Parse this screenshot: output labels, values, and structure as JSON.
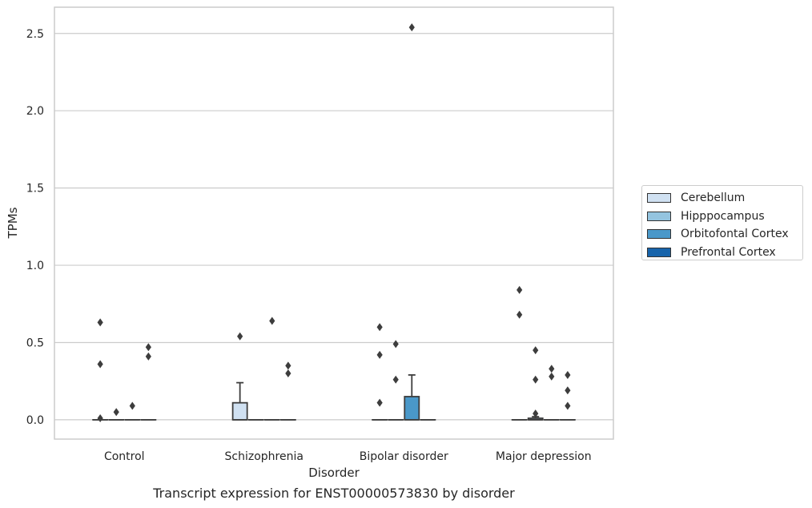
{
  "chart_data": {
    "type": "box",
    "title": "",
    "caption": "Transcript expression for ENST00000573830 by disorder",
    "xlabel": "Disorder",
    "ylabel": "TPMs",
    "categories": [
      "Control",
      "Schizophrenia",
      "Bipolar disorder",
      "Major depression"
    ],
    "ylim": [
      -0.125,
      2.67
    ],
    "yticks": [
      0.0,
      0.5,
      1.0,
      1.5,
      2.0,
      2.5
    ],
    "ytick_labels": [
      "0.0",
      "0.5",
      "1.0",
      "1.5",
      "2.0",
      "2.5"
    ],
    "grid": true,
    "legend_position": "right",
    "series": [
      {
        "name": "Cerebellum",
        "color": "#d0e1f2",
        "boxes": [
          {
            "q1": 0,
            "median": 0,
            "q3": 0,
            "whisker_low": 0,
            "whisker_high": 0,
            "outliers": [
              0.63,
              0.36,
              0.01
            ]
          },
          {
            "q1": 0,
            "median": 0,
            "q3": 0.11,
            "whisker_low": 0,
            "whisker_high": 0.24,
            "outliers": [
              0.54
            ]
          },
          {
            "q1": 0,
            "median": 0,
            "q3": 0,
            "whisker_low": 0,
            "whisker_high": 0,
            "outliers": [
              0.6,
              0.42,
              0.11
            ]
          },
          {
            "q1": 0,
            "median": 0,
            "q3": 0,
            "whisker_low": 0,
            "whisker_high": 0,
            "outliers": [
              0.84,
              0.68
            ]
          }
        ]
      },
      {
        "name": "Hipppocampus",
        "color": "#94c4df",
        "boxes": [
          {
            "q1": 0,
            "median": 0,
            "q3": 0,
            "whisker_low": 0,
            "whisker_high": 0,
            "outliers": [
              0.05
            ]
          },
          {
            "q1": 0,
            "median": 0,
            "q3": 0,
            "whisker_low": 0,
            "whisker_high": 0,
            "outliers": []
          },
          {
            "q1": 0,
            "median": 0,
            "q3": 0,
            "whisker_low": 0,
            "whisker_high": 0,
            "outliers": [
              0.49,
              0.26
            ]
          },
          {
            "q1": 0,
            "median": 0,
            "q3": 0.01,
            "whisker_low": 0,
            "whisker_high": 0.02,
            "outliers": [
              0.45,
              0.26,
              0.04
            ]
          }
        ]
      },
      {
        "name": "Orbitofontal Cortex",
        "color": "#4a98c9",
        "boxes": [
          {
            "q1": 0,
            "median": 0,
            "q3": 0,
            "whisker_low": 0,
            "whisker_high": 0,
            "outliers": [
              0.09
            ]
          },
          {
            "q1": 0,
            "median": 0,
            "q3": 0,
            "whisker_low": 0,
            "whisker_high": 0,
            "outliers": [
              0.64
            ]
          },
          {
            "q1": 0,
            "median": 0,
            "q3": 0.15,
            "whisker_low": 0,
            "whisker_high": 0.29,
            "outliers": [
              2.54
            ]
          },
          {
            "q1": 0,
            "median": 0,
            "q3": 0,
            "whisker_low": 0,
            "whisker_high": 0,
            "outliers": [
              0.33,
              0.28
            ]
          }
        ]
      },
      {
        "name": "Prefrontal Cortex",
        "color": "#1764ab",
        "boxes": [
          {
            "q1": 0,
            "median": 0,
            "q3": 0,
            "whisker_low": 0,
            "whisker_high": 0,
            "outliers": [
              0.47,
              0.41
            ]
          },
          {
            "q1": 0,
            "median": 0,
            "q3": 0,
            "whisker_low": 0,
            "whisker_high": 0,
            "outliers": [
              0.35,
              0.3
            ]
          },
          {
            "q1": 0,
            "median": 0,
            "q3": 0,
            "whisker_low": 0,
            "whisker_high": 0,
            "outliers": []
          },
          {
            "q1": 0,
            "median": 0,
            "q3": 0,
            "whisker_low": 0,
            "whisker_high": 0,
            "outliers": [
              0.29,
              0.19,
              0.09
            ]
          }
        ]
      }
    ]
  }
}
